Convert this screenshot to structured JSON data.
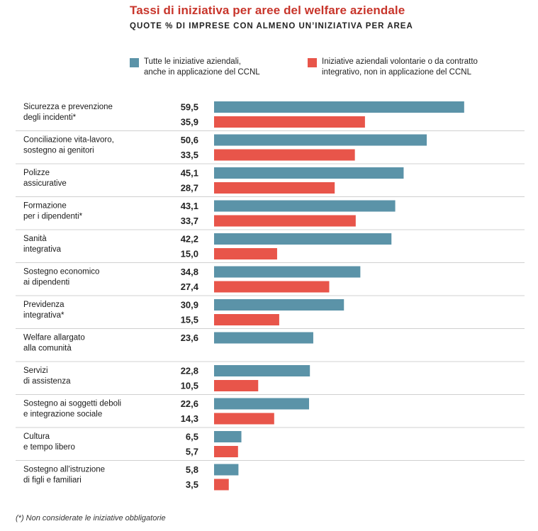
{
  "title": "Tassi di iniziativa per aree del welfare aziendale",
  "subtitle": "QUOTE % DI IMPRESE CON ALMENO UN’INIZIATIVA PER AREA",
  "footnote": "(*) Non considerate le iniziative obbligatorie",
  "colors": {
    "series_all": "#5b93a8",
    "series_voluntary": "#e8554a",
    "title": "#c8352b"
  },
  "chart_data": {
    "type": "bar",
    "orientation": "horizontal",
    "categories": [
      "Sicurezza e prevenzione\ndegli incidenti*",
      "Conciliazione vita-lavoro,\nsostegno ai genitori",
      "Polizze\nassicurative",
      "Formazione\nper i dipendenti*",
      "Sanità\nintegrativa",
      "Sostegno economico\nai dipendenti",
      "Previdenza\nintegrativa*",
      "Welfare allargato\nalla comunità",
      "Servizi\ndi assistenza",
      "Sostegno ai soggetti deboli\ne integrazione sociale",
      "Cultura\ne tempo libero",
      "Sostegno all’istruzione\ndi figli e familiari"
    ],
    "series": [
      {
        "name": "Tutte le iniziative aziendali,\nanche in applicazione del CCNL",
        "color": "#5b93a8",
        "values": [
          59.5,
          50.6,
          45.1,
          43.1,
          42.2,
          34.8,
          30.9,
          23.6,
          22.8,
          22.6,
          6.5,
          5.8
        ],
        "labels": [
          "59,5",
          "50,6",
          "45,1",
          "43,1",
          "42,2",
          "34,8",
          "30,9",
          "23,6",
          "22,8",
          "22,6",
          "6,5",
          "5,8"
        ]
      },
      {
        "name": "Iniziative aziendali volontarie o da contratto\nintegrativo, non in applicazione del CCNL",
        "color": "#e8554a",
        "values": [
          35.9,
          33.5,
          28.7,
          33.7,
          15.0,
          27.4,
          15.5,
          null,
          10.5,
          14.3,
          5.7,
          3.5
        ],
        "labels": [
          "35,9",
          "33,5",
          "28,7",
          "33,7",
          "15,0",
          "27,4",
          "15,5",
          "",
          "10,5",
          "14,3",
          "5,7",
          "3,5"
        ]
      }
    ],
    "xlim": [
      0,
      65
    ],
    "grid": false,
    "legend": "top"
  }
}
